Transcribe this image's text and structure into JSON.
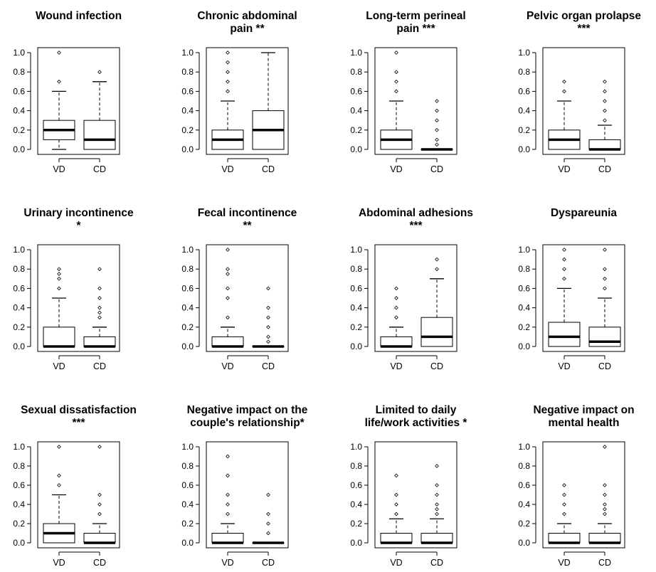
{
  "chart_data": {
    "type": "box",
    "layout": {
      "rows": 3,
      "cols": 4
    },
    "categories": [
      "VD",
      "CD"
    ],
    "y_ticks": [
      "0.0",
      "0.2",
      "0.4",
      "0.6",
      "0.8",
      "1.0"
    ],
    "ylim": [
      0,
      1
    ],
    "grid": false,
    "panels": [
      {
        "title": [
          "Wound infection"
        ],
        "boxes": [
          {
            "category": "VD",
            "whisker_low": 0.0,
            "q1": 0.1,
            "median": 0.2,
            "q3": 0.3,
            "whisker_high": 0.6,
            "outliers": [
              0.7,
              1.0
            ]
          },
          {
            "category": "CD",
            "whisker_low": 0.0,
            "q1": 0.0,
            "median": 0.1,
            "q3": 0.3,
            "whisker_high": 0.7,
            "outliers": [
              0.8
            ]
          }
        ]
      },
      {
        "title": [
          "Chronic abdominal",
          "pain  **"
        ],
        "boxes": [
          {
            "category": "VD",
            "whisker_low": 0.0,
            "q1": 0.0,
            "median": 0.1,
            "q3": 0.2,
            "whisker_high": 0.5,
            "outliers": [
              0.6,
              0.7,
              0.8,
              0.9,
              1.0
            ]
          },
          {
            "category": "CD",
            "whisker_low": 0.0,
            "q1": 0.0,
            "median": 0.2,
            "q3": 0.4,
            "whisker_high": 1.0,
            "outliers": []
          }
        ]
      },
      {
        "title": [
          "Long-term perineal",
          "pain  ***"
        ],
        "boxes": [
          {
            "category": "VD",
            "whisker_low": 0.0,
            "q1": 0.0,
            "median": 0.1,
            "q3": 0.2,
            "whisker_high": 0.5,
            "outliers": [
              0.6,
              0.7,
              0.8,
              1.0
            ]
          },
          {
            "category": "CD",
            "whisker_low": 0.0,
            "q1": 0.0,
            "median": 0.0,
            "q3": 0.0,
            "whisker_high": 0.0,
            "outliers": [
              0.05,
              0.1,
              0.2,
              0.3,
              0.4,
              0.5
            ]
          }
        ]
      },
      {
        "title": [
          "Pelvic organ prolapse",
          "***"
        ],
        "boxes": [
          {
            "category": "VD",
            "whisker_low": 0.0,
            "q1": 0.0,
            "median": 0.1,
            "q3": 0.2,
            "whisker_high": 0.5,
            "outliers": [
              0.6,
              0.7
            ]
          },
          {
            "category": "CD",
            "whisker_low": 0.0,
            "q1": 0.0,
            "median": 0.0,
            "q3": 0.1,
            "whisker_high": 0.25,
            "outliers": [
              0.3,
              0.4,
              0.5,
              0.6,
              0.7
            ]
          }
        ]
      },
      {
        "title": [
          "Urinary incontinence",
          "*"
        ],
        "boxes": [
          {
            "category": "VD",
            "whisker_low": 0.0,
            "q1": 0.0,
            "median": 0.0,
            "q3": 0.2,
            "whisker_high": 0.5,
            "outliers": [
              0.6,
              0.7,
              0.75,
              0.8
            ]
          },
          {
            "category": "CD",
            "whisker_low": 0.0,
            "q1": 0.0,
            "median": 0.0,
            "q3": 0.1,
            "whisker_high": 0.2,
            "outliers": [
              0.3,
              0.35,
              0.4,
              0.5,
              0.6,
              0.8
            ]
          }
        ]
      },
      {
        "title": [
          "Fecal incontinence",
          "**"
        ],
        "boxes": [
          {
            "category": "VD",
            "whisker_low": 0.0,
            "q1": 0.0,
            "median": 0.0,
            "q3": 0.1,
            "whisker_high": 0.2,
            "outliers": [
              0.3,
              0.5,
              0.6,
              0.75,
              0.8,
              1.0
            ]
          },
          {
            "category": "CD",
            "whisker_low": 0.0,
            "q1": 0.0,
            "median": 0.0,
            "q3": 0.0,
            "whisker_high": 0.0,
            "outliers": [
              0.05,
              0.1,
              0.2,
              0.3,
              0.4,
              0.6
            ]
          }
        ]
      },
      {
        "title": [
          "Abdominal adhesions",
          "***"
        ],
        "boxes": [
          {
            "category": "VD",
            "whisker_low": 0.0,
            "q1": 0.0,
            "median": 0.0,
            "q3": 0.1,
            "whisker_high": 0.2,
            "outliers": [
              0.3,
              0.4,
              0.5,
              0.6
            ]
          },
          {
            "category": "CD",
            "whisker_low": 0.0,
            "q1": 0.0,
            "median": 0.1,
            "q3": 0.3,
            "whisker_high": 0.7,
            "outliers": [
              0.8,
              0.9
            ]
          }
        ]
      },
      {
        "title": [
          "Dyspareunia"
        ],
        "boxes": [
          {
            "category": "VD",
            "whisker_low": 0.0,
            "q1": 0.0,
            "median": 0.1,
            "q3": 0.25,
            "whisker_high": 0.6,
            "outliers": [
              0.7,
              0.8,
              0.9,
              1.0
            ]
          },
          {
            "category": "CD",
            "whisker_low": 0.0,
            "q1": 0.0,
            "median": 0.05,
            "q3": 0.2,
            "whisker_high": 0.5,
            "outliers": [
              0.6,
              0.7,
              0.8,
              1.0
            ]
          }
        ]
      },
      {
        "title": [
          "Sexual dissatisfaction",
          "***"
        ],
        "boxes": [
          {
            "category": "VD",
            "whisker_low": 0.0,
            "q1": 0.0,
            "median": 0.1,
            "q3": 0.2,
            "whisker_high": 0.5,
            "outliers": [
              0.6,
              0.7,
              1.0
            ]
          },
          {
            "category": "CD",
            "whisker_low": 0.0,
            "q1": 0.0,
            "median": 0.0,
            "q3": 0.1,
            "whisker_high": 0.2,
            "outliers": [
              0.3,
              0.4,
              0.5,
              1.0
            ]
          }
        ]
      },
      {
        "title": [
          "Negative impact on the",
          "couple's relationship*"
        ],
        "boxes": [
          {
            "category": "VD",
            "whisker_low": 0.0,
            "q1": 0.0,
            "median": 0.0,
            "q3": 0.1,
            "whisker_high": 0.2,
            "outliers": [
              0.3,
              0.4,
              0.5,
              0.7,
              0.9
            ]
          },
          {
            "category": "CD",
            "whisker_low": 0.0,
            "q1": 0.0,
            "median": 0.0,
            "q3": 0.0,
            "whisker_high": 0.0,
            "outliers": [
              0.1,
              0.2,
              0.3,
              0.5
            ]
          }
        ]
      },
      {
        "title": [
          "Limited to daily",
          "life/work activities *"
        ],
        "boxes": [
          {
            "category": "VD",
            "whisker_low": 0.0,
            "q1": 0.0,
            "median": 0.0,
            "q3": 0.1,
            "whisker_high": 0.25,
            "outliers": [
              0.3,
              0.4,
              0.5,
              0.7
            ]
          },
          {
            "category": "CD",
            "whisker_low": 0.0,
            "q1": 0.0,
            "median": 0.0,
            "q3": 0.1,
            "whisker_high": 0.25,
            "outliers": [
              0.3,
              0.35,
              0.4,
              0.5,
              0.6,
              0.8
            ]
          }
        ]
      },
      {
        "title": [
          "Negative impact on",
          "mental health"
        ],
        "boxes": [
          {
            "category": "VD",
            "whisker_low": 0.0,
            "q1": 0.0,
            "median": 0.0,
            "q3": 0.1,
            "whisker_high": 0.2,
            "outliers": [
              0.3,
              0.4,
              0.5,
              0.6
            ]
          },
          {
            "category": "CD",
            "whisker_low": 0.0,
            "q1": 0.0,
            "median": 0.0,
            "q3": 0.1,
            "whisker_high": 0.2,
            "outliers": [
              0.3,
              0.35,
              0.4,
              0.5,
              0.6,
              1.0
            ]
          }
        ]
      }
    ]
  }
}
